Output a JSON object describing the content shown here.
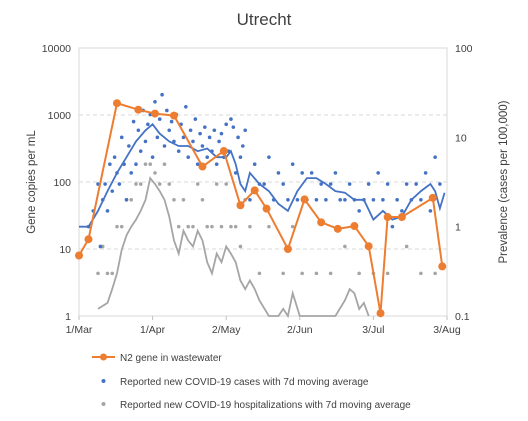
{
  "chart_data": {
    "type": "line",
    "title": "Utrecht",
    "ylabel_left": "Gene copies per mL",
    "ylabel_right": "Prevalence (cases per 100,000)",
    "x_ticks": [
      {
        "label": "1/Mar",
        "day": 0
      },
      {
        "label": "1/Apr",
        "day": 31
      },
      {
        "label": "2/May",
        "day": 62
      },
      {
        "label": "2/Jun",
        "day": 93
      },
      {
        "label": "3/Jul",
        "day": 124
      },
      {
        "label": "3/Aug",
        "day": 155
      }
    ],
    "xlim": [
      0,
      155
    ],
    "y_left": {
      "scale": "log",
      "range": [
        1,
        10000
      ],
      "ticks": [
        "1",
        "10",
        "100",
        "1000",
        "10000"
      ]
    },
    "y_right": {
      "scale": "log",
      "range": [
        0.1,
        100
      ],
      "ticks": [
        "0.1",
        "1",
        "10",
        "100"
      ]
    },
    "grid": "horizontal dashed at left-axis decades",
    "legend_position": "bottom",
    "colors": {
      "wastewater": "#ED7D31",
      "cases": "#4472C4",
      "hospital": "#A5A5A5"
    },
    "series": [
      {
        "name": "N2 gene in wastewater",
        "axis": "left",
        "style": "line+markers",
        "x": [
          0,
          4,
          16,
          25,
          32,
          40,
          52,
          61,
          68,
          74,
          79,
          88,
          95,
          102,
          109,
          116,
          122,
          127,
          130,
          136,
          149,
          153
        ],
        "y": [
          8,
          14,
          1500,
          1200,
          1050,
          980,
          170,
          290,
          45,
          75,
          40,
          10,
          55,
          25,
          20,
          22,
          11,
          1.1,
          30,
          30,
          58,
          5.5
        ]
      },
      {
        "name": "Reported new COVID-19 cases with 7d moving average",
        "axis": "right",
        "style": "points+line",
        "points_day": [
          4,
          6,
          8,
          9,
          10,
          11,
          12,
          13,
          14,
          15,
          16,
          17,
          18,
          19,
          20,
          21,
          22,
          23,
          24,
          25,
          26,
          27,
          28,
          29,
          30,
          31,
          32,
          33,
          34,
          35,
          36,
          37,
          38,
          39,
          40,
          41,
          42,
          43,
          44,
          45,
          46,
          47,
          48,
          49,
          50,
          51,
          52,
          53,
          54,
          55,
          56,
          57,
          58,
          59,
          60,
          61,
          62,
          63,
          64,
          65,
          66,
          67,
          68,
          69,
          70,
          72,
          74,
          76,
          78,
          80,
          82,
          84,
          86,
          88,
          90,
          92,
          94,
          96,
          98,
          100,
          102,
          104,
          106,
          108,
          110,
          112,
          114,
          116,
          118,
          120,
          122,
          124,
          126,
          128,
          130,
          132,
          134,
          136,
          138,
          140,
          142,
          144,
          146,
          148,
          150,
          152
        ],
        "points_y": [
          1,
          1.5,
          3,
          0.6,
          2,
          3,
          1.5,
          5,
          2.5,
          6,
          4,
          3,
          10,
          5,
          2,
          8,
          4,
          15,
          5,
          12,
          7,
          20,
          9,
          14,
          18,
          6,
          25,
          10,
          16,
          30,
          8,
          20,
          12,
          15,
          9,
          18,
          7,
          14,
          10,
          22,
          6,
          12,
          9,
          16,
          5,
          11,
          8,
          13,
          6,
          10,
          7,
          12,
          5,
          9,
          11,
          6,
          14,
          7,
          16,
          13,
          4,
          10,
          6,
          8,
          12,
          2,
          5,
          3,
          3,
          6,
          2,
          4,
          3,
          2,
          5,
          2,
          4,
          2,
          4,
          2,
          3,
          2,
          3,
          4,
          2,
          2,
          3,
          2,
          1.5,
          2,
          3,
          2,
          4,
          2,
          3,
          1,
          2,
          1.5,
          3,
          2,
          3,
          2,
          4,
          1.5,
          6,
          3
        ],
        "avg_day": [
          0,
          4,
          8,
          12,
          16,
          20,
          24,
          28,
          31,
          34,
          38,
          42,
          46,
          50,
          54,
          58,
          62,
          64,
          66,
          68,
          70,
          72,
          76,
          80,
          84,
          88,
          92,
          96,
          100,
          104,
          108,
          112,
          116,
          120,
          124,
          128,
          132,
          136,
          140,
          144,
          148,
          150,
          152,
          154
        ],
        "avg_y": [
          1,
          1,
          1.5,
          2.5,
          4,
          6,
          9,
          12,
          14,
          11,
          9,
          8,
          8,
          7,
          7.5,
          6,
          6,
          7,
          5,
          3,
          2.5,
          4,
          3,
          2.5,
          1.8,
          1.5,
          2.5,
          3.5,
          3.5,
          3,
          2.5,
          2.4,
          2,
          2,
          1.2,
          1.5,
          1.2,
          1.3,
          2,
          2.5,
          3,
          2.5,
          1.6,
          2.4
        ]
      },
      {
        "name": "Reported new COVID-19 hospitalizations with 7d moving average",
        "axis": "right",
        "style": "points+line",
        "points_day": [
          8,
          10,
          12,
          14,
          16,
          18,
          20,
          22,
          24,
          26,
          28,
          30,
          32,
          34,
          36,
          38,
          40,
          42,
          44,
          46,
          48,
          50,
          52,
          54,
          56,
          58,
          60,
          62,
          64,
          66,
          68,
          70,
          72,
          76,
          80,
          86,
          90,
          94,
          100,
          106,
          112,
          118,
          124,
          130,
          138,
          144,
          150
        ],
        "points_y": [
          0.3,
          0.6,
          0.3,
          0.3,
          1,
          1,
          2,
          2,
          3,
          3,
          5,
          5,
          4,
          3,
          5,
          3,
          2,
          1,
          2,
          1,
          1,
          3,
          2,
          1,
          1,
          3,
          1,
          3,
          1,
          1,
          0.6,
          2,
          1,
          0.3,
          1,
          0.3,
          1,
          0.3,
          0.3,
          0.3,
          0.6,
          0.3,
          0.3,
          0.3,
          0.6,
          0.3,
          0.3
        ],
        "avg_day": [
          8,
          12,
          14,
          16,
          18,
          20,
          22,
          24,
          26,
          28,
          30,
          32,
          34,
          36,
          38,
          40,
          42,
          44,
          46,
          48,
          50,
          52,
          54,
          56,
          58,
          60,
          62,
          64,
          66,
          68,
          70,
          72,
          74,
          76,
          80,
          84,
          86,
          88,
          90,
          93,
          97,
          100,
          104,
          108,
          112,
          114,
          116,
          118,
          120,
          122
        ],
        "avg_y": [
          0.12,
          0.14,
          0.2,
          0.3,
          0.55,
          0.8,
          1,
          1.2,
          1.5,
          2,
          3.5,
          3,
          2.5,
          2,
          1.3,
          0.7,
          0.5,
          0.9,
          0.7,
          0.6,
          0.9,
          0.7,
          0.4,
          0.3,
          0.5,
          0.4,
          0.6,
          0.5,
          0.4,
          0.25,
          0.2,
          0.25,
          0.2,
          0.15,
          0.1,
          0.1,
          0.12,
          0.1,
          0.18,
          0.1,
          0.1,
          0.1,
          0.1,
          0.1,
          0.15,
          0.2,
          0.18,
          0.12,
          0.14,
          0.1
        ]
      }
    ]
  }
}
